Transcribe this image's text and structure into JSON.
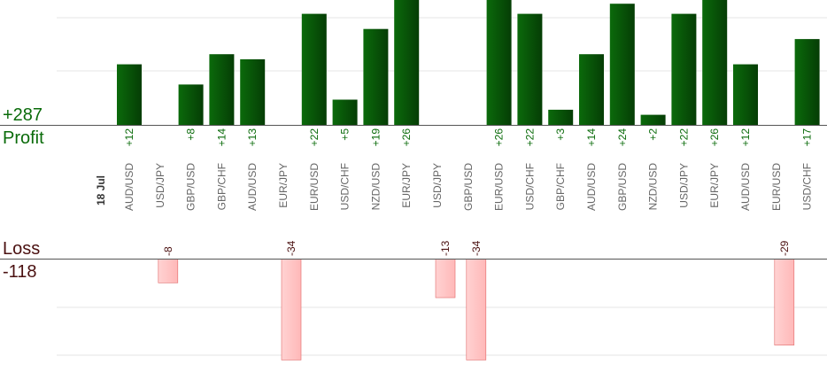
{
  "summary": {
    "profit_total": "+287",
    "profit_label": "Profit",
    "loss_label": "Loss",
    "loss_total": "-118"
  },
  "colors": {
    "profit_bar": "#0b6a0b",
    "profit_bar_dark": "#053d05",
    "loss_bar": "#ffb8b8",
    "loss_bar_border": "#e06a6a",
    "profit_text": "#0a6b0a",
    "loss_text": "#4a1010",
    "grid": "#e6e6e6",
    "axis": "#555555"
  },
  "chart_data": {
    "type": "bar",
    "date_label": "18 Jul",
    "categories": [
      "AUD/USD",
      "USD/JPY",
      "GBP/USD",
      "GBP/CHF",
      "AUD/USD",
      "EUR/JPY",
      "EUR/USD",
      "USD/CHF",
      "NZD/USD",
      "EUR/JPY",
      "USD/JPY",
      "GBP/USD",
      "EUR/USD",
      "USD/CHF",
      "GBP/CHF",
      "AUD/USD",
      "GBP/USD",
      "NZD/USD",
      "USD/JPY",
      "EUR/JPY",
      "AUD/USD",
      "EUR/USD",
      "USD/CHF"
    ],
    "values": [
      12,
      -8,
      8,
      14,
      13,
      -34,
      22,
      5,
      19,
      26,
      -13,
      -34,
      26,
      22,
      3,
      14,
      24,
      2,
      22,
      26,
      12,
      -29,
      17
    ],
    "value_labels": [
      "+12",
      "-8",
      "+8",
      "+14",
      "+13",
      "-34",
      "+22",
      "+5",
      "+19",
      "+26",
      "-13",
      "-34",
      "+26",
      "+22",
      "+3",
      "+14",
      "+24",
      "+2",
      "+22",
      "+26",
      "+12",
      "-29",
      "+17"
    ],
    "profit_ylim": [
      0,
      25
    ],
    "loss_ylim": [
      0,
      40
    ],
    "grid": true
  }
}
